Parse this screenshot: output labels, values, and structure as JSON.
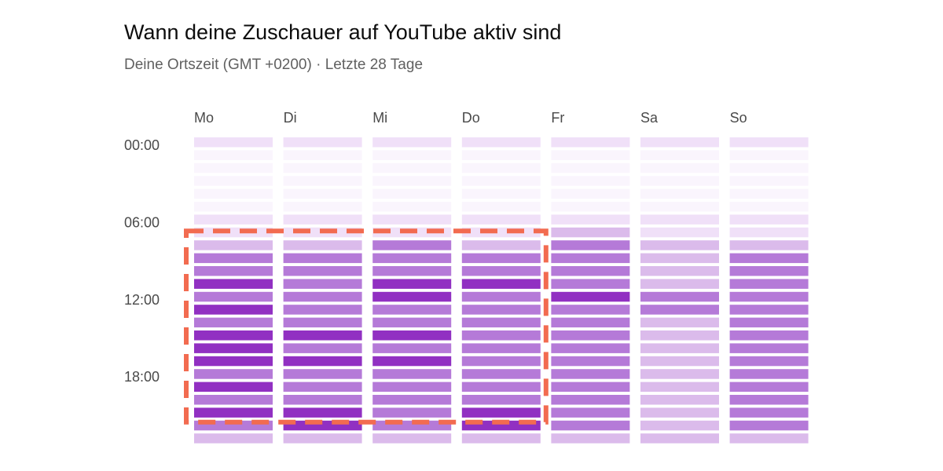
{
  "title": "Wann deine Zuschauer auf YouTube aktiv sind",
  "subtitle": "Deine Ortszeit (GMT +0200) · Letzte 28 Tage",
  "colors": {
    "level_0": "#faf5fd",
    "level_1": "#f0e0f8",
    "level_2": "#dbbbeb",
    "level_3": "#b57ad8",
    "level_4": "#9130c2",
    "highlight": "#f26b50"
  },
  "chart_data": {
    "type": "heatmap",
    "title": "Wann deine Zuschauer auf YouTube aktiv sind",
    "subtitle": "Deine Ortszeit (GMT +0200) · Letzte 28 Tage",
    "x_categories": [
      "Mo",
      "Di",
      "Mi",
      "Do",
      "Fr",
      "Sa",
      "So"
    ],
    "y_tick_labels": [
      "00:00",
      "06:00",
      "12:00",
      "18:00"
    ],
    "y_categories": [
      "00",
      "01",
      "02",
      "03",
      "04",
      "05",
      "06",
      "07",
      "08",
      "09",
      "10",
      "11",
      "12",
      "13",
      "14",
      "15",
      "16",
      "17",
      "18",
      "19",
      "20",
      "21",
      "22",
      "23"
    ],
    "value_scale": "relative activity level, 0 (lowest) to 4 (highest)",
    "values": {
      "Mo": [
        1,
        0,
        0,
        0,
        0,
        0,
        1,
        1,
        2,
        3,
        3,
        4,
        3,
        4,
        3,
        4,
        4,
        4,
        3,
        4,
        3,
        4,
        3,
        2
      ],
      "Di": [
        1,
        0,
        0,
        0,
        0,
        0,
        1,
        1,
        2,
        3,
        3,
        3,
        3,
        3,
        3,
        4,
        3,
        4,
        3,
        3,
        3,
        4,
        4,
        2
      ],
      "Mi": [
        1,
        0,
        0,
        0,
        0,
        0,
        1,
        1,
        3,
        3,
        3,
        4,
        4,
        3,
        3,
        4,
        3,
        4,
        3,
        3,
        3,
        3,
        3,
        2
      ],
      "Do": [
        1,
        0,
        0,
        0,
        0,
        0,
        1,
        1,
        2,
        3,
        3,
        4,
        3,
        3,
        3,
        3,
        3,
        3,
        3,
        3,
        3,
        4,
        4,
        2
      ],
      "Fr": [
        1,
        0,
        0,
        0,
        0,
        0,
        1,
        2,
        3,
        3,
        3,
        3,
        4,
        3,
        3,
        3,
        3,
        3,
        3,
        3,
        3,
        3,
        3,
        2
      ],
      "Sa": [
        1,
        0,
        0,
        0,
        0,
        0,
        1,
        1,
        2,
        2,
        2,
        2,
        3,
        3,
        2,
        2,
        2,
        2,
        2,
        2,
        2,
        2,
        2,
        2
      ],
      "So": [
        1,
        0,
        0,
        0,
        0,
        0,
        1,
        1,
        2,
        3,
        3,
        3,
        3,
        3,
        3,
        3,
        3,
        3,
        3,
        3,
        3,
        3,
        3,
        2
      ]
    },
    "highlight": {
      "style": "dashed",
      "days": [
        "Mo",
        "Di",
        "Mi",
        "Do"
      ],
      "hours_from": 8,
      "hours_to": 22
    }
  }
}
